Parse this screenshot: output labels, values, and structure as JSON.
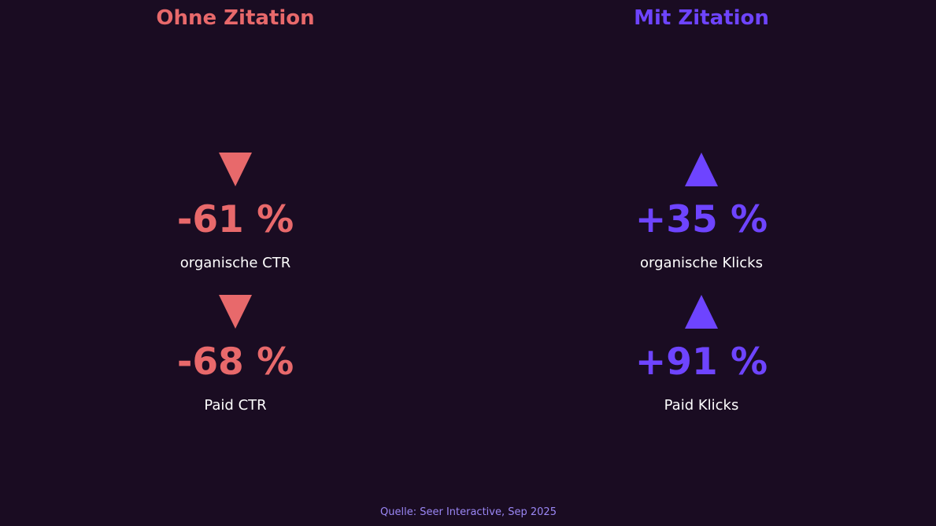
{
  "colors": {
    "background": "#1a0c22",
    "negative": "#e8696b",
    "positive": "#6e44ff",
    "source": "#9b87f5"
  },
  "left": {
    "title": "Ohne Zitation",
    "items": [
      {
        "icon": "triangle-down-icon",
        "value": "-61 %",
        "label": "organische CTR"
      },
      {
        "icon": "triangle-down-icon",
        "value": "-68 %",
        "label": "Paid CTR"
      }
    ]
  },
  "right": {
    "title": "Mit Zitation",
    "items": [
      {
        "icon": "triangle-up-icon",
        "value": "+35 %",
        "label": "organische Klicks"
      },
      {
        "icon": "triangle-up-icon",
        "value": "+91 %",
        "label": "Paid Klicks"
      }
    ]
  },
  "source": "Quelle: Seer Interactive, Sep 2025"
}
